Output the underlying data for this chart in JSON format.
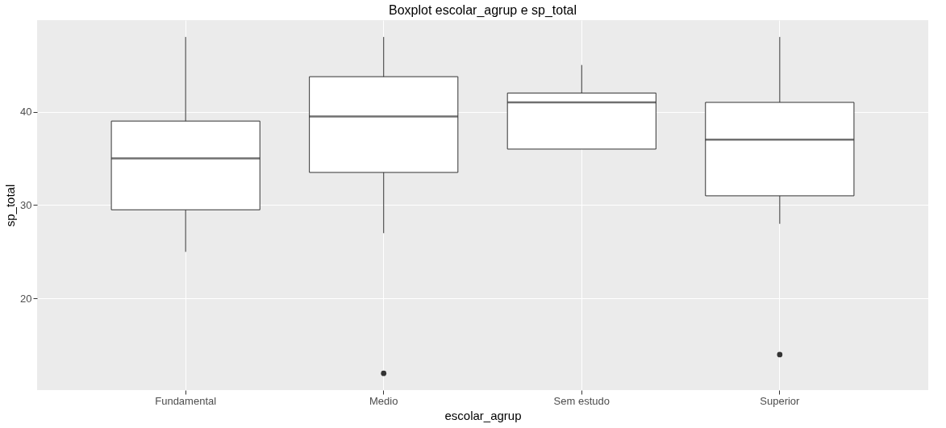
{
  "chart_data": {
    "type": "box",
    "title": "Boxplot escolar_agrup e sp_total",
    "xlabel": "escolar_agrup",
    "ylabel": "sp_total",
    "categories": [
      "Fundamental",
      "Medio",
      "Sem estudo",
      "Superior"
    ],
    "boxes": [
      {
        "low": 25,
        "q1": 29.5,
        "median": 35,
        "q3": 39,
        "high": 48
      },
      {
        "low": 27,
        "q1": 33.5,
        "median": 39.5,
        "q3": 43.75,
        "high": 48,
        "outliers": [
          12
        ]
      },
      {
        "low": 36,
        "q1": 36,
        "median": 41,
        "q3": 42,
        "high": 45
      },
      {
        "low": 28,
        "q1": 31,
        "median": 37,
        "q3": 41,
        "high": 48,
        "outliers": [
          14
        ]
      }
    ],
    "ylim": [
      10.2,
      49.8
    ],
    "yticks": [
      20,
      30,
      40
    ],
    "grid": true
  }
}
